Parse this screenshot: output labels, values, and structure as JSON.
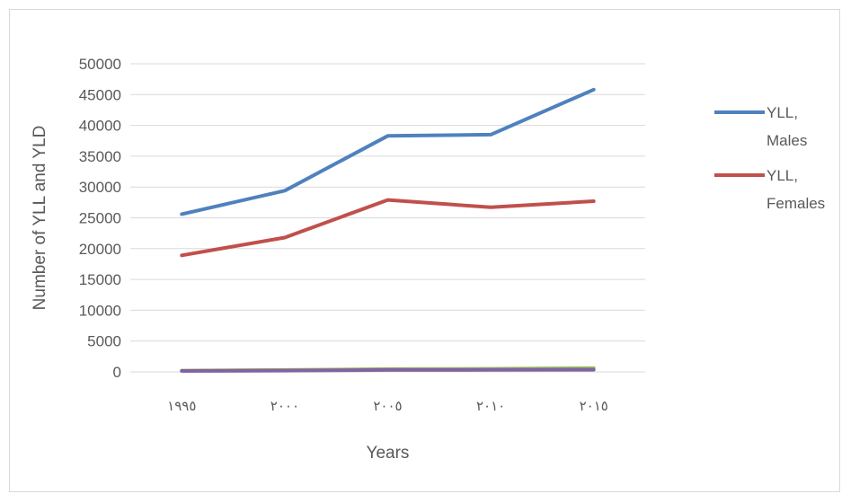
{
  "chart_data": {
    "type": "line",
    "title": "",
    "xlabel": "Years",
    "ylabel": "Number of YLL and YLD",
    "categories": [
      "١٩٩٥",
      "٢٠٠٠",
      "٢٠٠٥",
      "٢٠١٠",
      "٢٠١٥"
    ],
    "ylim": [
      0,
      50000
    ],
    "yticks": [
      "0",
      "5000",
      "10000",
      "15000",
      "20000",
      "25000",
      "30000",
      "35000",
      "40000",
      "45000",
      "50000"
    ],
    "grid": true,
    "legend_position": "right",
    "series": [
      {
        "name": "YLL, Males",
        "legend_lines": [
          "YLL,",
          "Males"
        ],
        "color": "#4f81bd",
        "values": [
          25600,
          29400,
          38300,
          38500,
          45800
        ]
      },
      {
        "name": "YLL, Females",
        "legend_lines": [
          "YLL,",
          "Females"
        ],
        "color": "#c0504d",
        "values": [
          18900,
          21800,
          27900,
          26700,
          27700
        ]
      },
      {
        "name": "",
        "color": "#9bbb59",
        "values": [
          200,
          300,
          450,
          500,
          600
        ]
      },
      {
        "name": "",
        "color": "#8064a2",
        "values": [
          150,
          200,
          300,
          320,
          350
        ]
      }
    ]
  }
}
